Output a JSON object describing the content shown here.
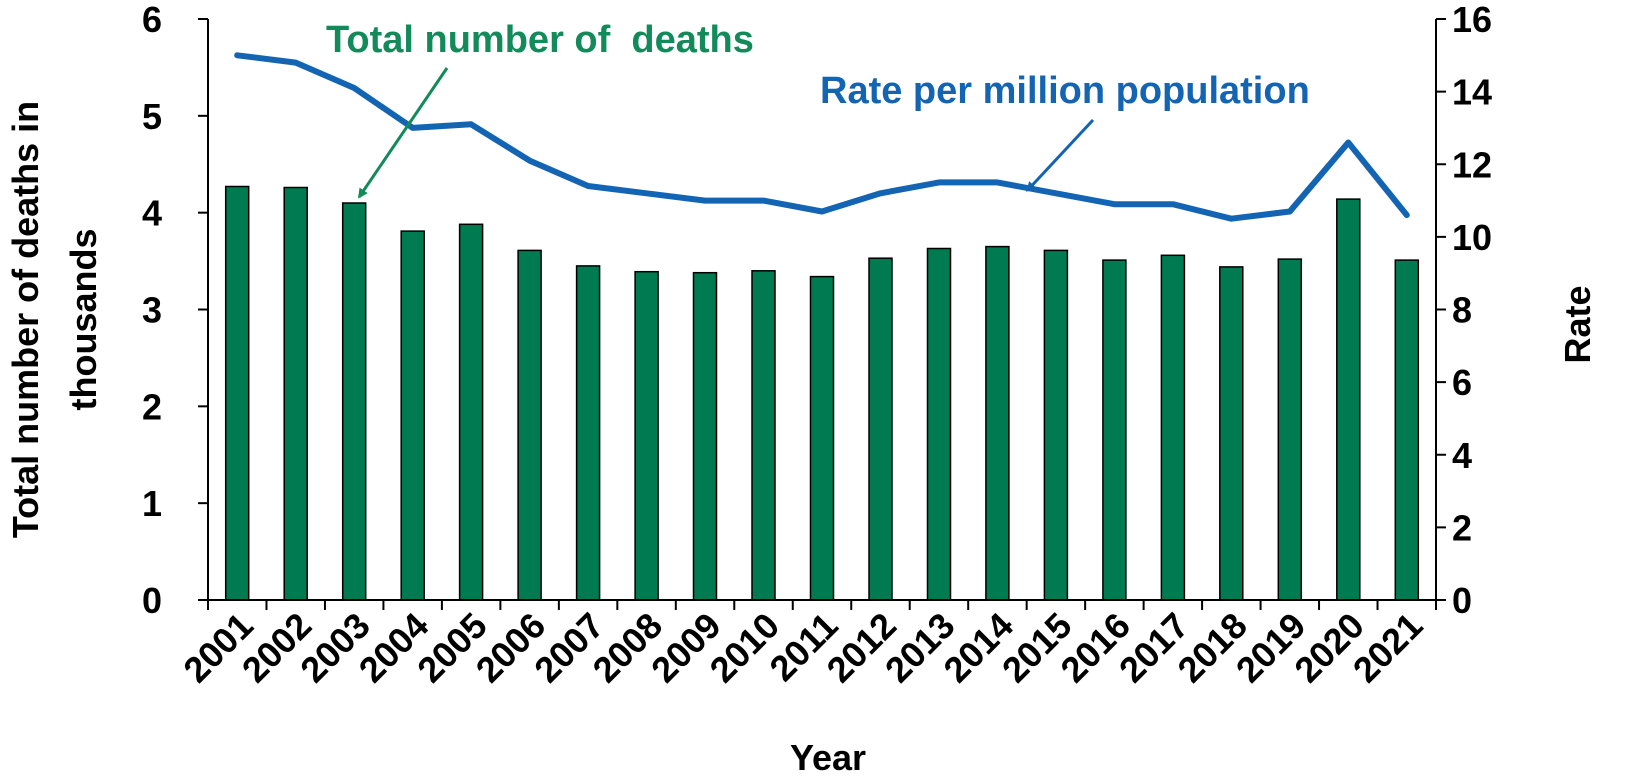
{
  "chart_data": {
    "type": "bar",
    "categories": [
      "2001",
      "2002",
      "2003",
      "2004",
      "2005",
      "2006",
      "2007",
      "2008",
      "2009",
      "2010",
      "2011",
      "2012",
      "2013",
      "2014",
      "2015",
      "2016",
      "2017",
      "2018",
      "2019",
      "2020",
      "2021"
    ],
    "series": [
      {
        "type": "bar",
        "axis": "left",
        "color": "#007A50",
        "values": [
          4.27,
          4.26,
          4.1,
          3.81,
          3.88,
          3.61,
          3.45,
          3.39,
          3.38,
          3.4,
          3.34,
          3.53,
          3.63,
          3.65,
          3.61,
          3.51,
          3.56,
          3.44,
          3.52,
          4.14,
          3.51
        ]
      },
      {
        "type": "line",
        "axis": "right",
        "color": "#1464B4",
        "values": [
          15.0,
          14.8,
          14.1,
          13.0,
          13.1,
          12.1,
          11.4,
          11.2,
          11.0,
          11.0,
          10.7,
          11.2,
          11.5,
          11.5,
          11.2,
          10.9,
          10.9,
          10.5,
          10.7,
          12.6,
          10.6
        ]
      }
    ],
    "xlabel": "Year",
    "ylabel": "Total number of deaths in thousands",
    "y2label": "Rate",
    "ylim": [
      0,
      6
    ],
    "y2lim": [
      0,
      16
    ],
    "yticks": [
      "0",
      "1",
      "2",
      "3",
      "4",
      "5",
      "6"
    ],
    "y2ticks": [
      "0",
      "2",
      "4",
      "6",
      "8",
      "10",
      "12",
      "14",
      "16"
    ],
    "grid": false,
    "annotations": [
      {
        "text": "Total number of  deaths",
        "color": "#138A5A",
        "target_series": 0,
        "target_category": "2003"
      },
      {
        "text": "Rate per million population",
        "color": "#1464B4",
        "target_series": 1,
        "target_category": "2014"
      }
    ]
  }
}
